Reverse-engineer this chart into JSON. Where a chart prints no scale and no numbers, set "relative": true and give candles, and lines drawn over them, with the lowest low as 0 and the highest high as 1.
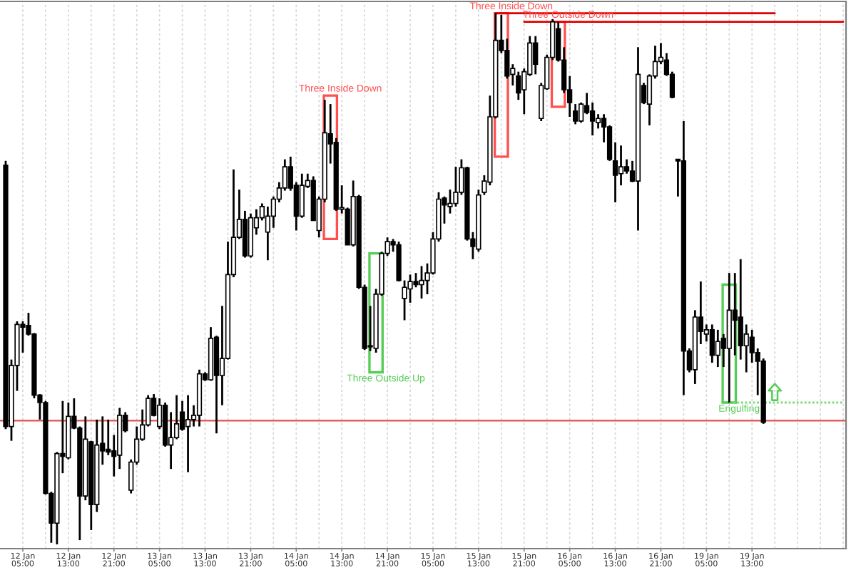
{
  "chart_data": {
    "type": "candlestick",
    "relative": true,
    "grid": "x",
    "categories": [
      null,
      null,
      null,
      "12 Jan 05:00",
      null,
      null,
      null,
      null,
      null,
      null,
      null,
      "12 Jan 13:00",
      null,
      null,
      null,
      null,
      null,
      null,
      null,
      "12 Jan 21:00",
      null,
      null,
      null,
      null,
      null,
      null,
      null,
      "13 Jan 05:00",
      null,
      null,
      null,
      null,
      null,
      null,
      null,
      "13 Jan 13:00",
      null,
      null,
      null,
      null,
      null,
      null,
      null,
      "13 Jan 21:00",
      null,
      null,
      null,
      null,
      null,
      null,
      null,
      "14 Jan 05:00",
      null,
      null,
      null,
      null,
      null,
      null,
      null,
      "14 Jan 13:00",
      null,
      null,
      null,
      null,
      null,
      null,
      null,
      "14 Jan 21:00",
      null,
      null,
      null,
      null,
      null,
      null,
      null,
      "15 Jan 05:00",
      null,
      null,
      null,
      null,
      null,
      null,
      null,
      "15 Jan 13:00",
      null,
      null,
      null,
      null,
      null,
      null,
      null,
      "15 Jan 21:00",
      null,
      null,
      null,
      null,
      null,
      null,
      null,
      "16 Jan 05:00",
      null,
      null,
      null,
      null,
      null,
      null,
      null,
      "16 Jan 13:00",
      null,
      null,
      null,
      null,
      null,
      null,
      null,
      "16 Jan 21:00",
      null,
      null,
      null,
      null,
      null,
      null,
      null,
      "19 Jan 05:00",
      null,
      null,
      null,
      null,
      null,
      null,
      null,
      "19 Jan 13:00",
      null,
      null,
      null,
      null,
      null,
      null,
      null,
      null,
      null,
      null,
      null,
      null,
      null,
      null,
      null,
      null
    ],
    "ref_lines": [
      {
        "axis": "y",
        "value": 0.233,
        "color": "#e05050"
      }
    ],
    "annotations": [
      "Three Inside Down",
      "Three Outside Up",
      "Three Inside Down",
      "Three Outside Down",
      "Engulfing"
    ],
    "ohlc": [
      [
        0.714,
        0.722,
        0.217,
        0.222
      ],
      [
        0.222,
        0.348,
        0.195,
        0.337
      ],
      [
        0.337,
        0.42,
        0.289,
        0.414
      ],
      [
        0.414,
        0.42,
        0.361,
        0.409
      ],
      [
        0.412,
        0.436,
        0.393,
        0.396
      ],
      [
        0.396,
        0.398,
        0.275,
        0.281
      ],
      [
        0.281,
        0.283,
        0.235,
        0.267
      ],
      [
        0.267,
        0.27,
        0.094,
        0.096
      ],
      [
        0.096,
        0.099,
        0.003,
        0.04
      ],
      [
        0.04,
        0.174,
        0.0,
        0.171
      ],
      [
        0.171,
        0.27,
        0.134,
        0.166
      ],
      [
        0.163,
        0.267,
        0.16,
        0.241
      ],
      [
        0.241,
        0.275,
        0.217,
        0.219
      ],
      [
        0.219,
        0.222,
        0.008,
        0.091
      ],
      [
        0.091,
        0.241,
        0.083,
        0.198
      ],
      [
        0.193,
        0.195,
        0.027,
        0.075
      ],
      [
        0.075,
        0.235,
        0.061,
        0.187
      ],
      [
        0.19,
        0.241,
        0.15,
        0.176
      ],
      [
        0.179,
        0.235,
        0.168,
        0.174
      ],
      [
        0.176,
        0.206,
        0.128,
        0.166
      ],
      [
        0.168,
        0.257,
        0.142,
        0.243
      ],
      [
        0.243,
        0.249,
        0.211,
        0.214
      ],
      [
        0.102,
        0.16,
        0.096,
        0.155
      ],
      [
        0.155,
        0.222,
        0.15,
        0.198
      ],
      [
        0.198,
        0.254,
        0.195,
        0.225
      ],
      [
        0.225,
        0.281,
        0.222,
        0.275
      ],
      [
        0.275,
        0.283,
        0.241,
        0.243
      ],
      [
        0.222,
        0.275,
        0.217,
        0.262
      ],
      [
        0.262,
        0.267,
        0.184,
        0.187
      ],
      [
        0.187,
        0.249,
        0.142,
        0.201
      ],
      [
        0.201,
        0.281,
        0.198,
        0.227
      ],
      [
        0.249,
        0.27,
        0.214,
        0.217
      ],
      [
        0.222,
        0.281,
        0.136,
        0.235
      ],
      [
        0.235,
        0.262,
        0.222,
        0.243
      ],
      [
        0.243,
        0.329,
        0.222,
        0.321
      ],
      [
        0.321,
        0.324,
        0.308,
        0.31
      ],
      [
        0.31,
        0.409,
        0.308,
        0.388
      ],
      [
        0.39,
        0.393,
        0.209,
        0.318
      ],
      [
        0.318,
        0.449,
        0.262,
        0.35
      ],
      [
        0.35,
        0.57,
        0.348,
        0.508
      ],
      [
        0.508,
        0.706,
        0.503,
        0.578
      ],
      [
        0.578,
        0.668,
        0.575,
        0.612
      ],
      [
        0.612,
        0.628,
        0.54,
        0.543
      ],
      [
        0.543,
        0.623,
        0.54,
        0.615
      ],
      [
        0.596,
        0.631,
        0.583,
        0.615
      ],
      [
        0.615,
        0.642,
        0.61,
        0.636
      ],
      [
        0.588,
        0.636,
        0.535,
        0.618
      ],
      [
        0.618,
        0.655,
        0.596,
        0.65
      ],
      [
        0.65,
        0.682,
        0.644,
        0.671
      ],
      [
        0.671,
        0.725,
        0.666,
        0.711
      ],
      [
        0.711,
        0.73,
        0.666,
        0.671
      ],
      [
        0.676,
        0.682,
        0.591,
        0.618
      ],
      [
        0.618,
        0.698,
        0.615,
        0.676
      ],
      [
        0.674,
        0.698,
        0.671,
        0.685
      ],
      [
        0.685,
        0.693,
        0.61,
        0.61
      ],
      [
        0.591,
        0.655,
        0.578,
        0.65
      ],
      [
        0.65,
        0.837,
        0.644,
        0.775
      ],
      [
        0.773,
        0.829,
        0.717,
        0.754
      ],
      [
        0.757,
        0.765,
        0.628,
        0.631
      ],
      [
        0.631,
        0.676,
        0.623,
        0.634
      ],
      [
        0.631,
        0.634,
        0.564,
        0.564
      ],
      [
        0.564,
        0.685,
        0.561,
        0.655
      ],
      [
        0.655,
        0.658,
        0.481,
        0.484
      ],
      [
        0.484,
        0.489,
        0.366,
        0.369
      ],
      [
        0.372,
        0.449,
        0.364,
        0.374
      ],
      [
        0.369,
        0.481,
        0.361,
        0.471
      ],
      [
        0.471,
        0.551,
        0.468,
        0.548
      ],
      [
        0.548,
        0.578,
        0.543,
        0.57
      ],
      [
        0.57,
        0.575,
        0.551,
        0.564
      ],
      [
        0.564,
        0.57,
        0.495,
        0.497
      ],
      [
        0.463,
        0.497,
        0.422,
        0.484
      ],
      [
        0.481,
        0.508,
        0.455,
        0.495
      ],
      [
        0.495,
        0.511,
        0.484,
        0.489
      ],
      [
        0.489,
        0.524,
        0.463,
        0.497
      ],
      [
        0.497,
        0.529,
        0.471,
        0.511
      ],
      [
        0.511,
        0.588,
        0.508,
        0.575
      ],
      [
        0.575,
        0.663,
        0.57,
        0.65
      ],
      [
        0.652,
        0.655,
        0.604,
        0.639
      ],
      [
        0.636,
        0.668,
        0.623,
        0.642
      ],
      [
        0.642,
        0.711,
        0.636,
        0.663
      ],
      [
        0.663,
        0.725,
        0.658,
        0.709
      ],
      [
        0.709,
        0.711,
        0.572,
        0.575
      ],
      [
        0.575,
        0.588,
        0.537,
        0.561
      ],
      [
        0.556,
        0.668,
        0.551,
        0.658
      ],
      [
        0.663,
        0.695,
        0.658,
        0.684
      ],
      [
        0.682,
        0.845,
        0.676,
        0.805
      ],
      [
        0.805,
        1.0,
        0.802,
        0.949
      ],
      [
        0.949,
        0.997,
        0.925,
        0.93
      ],
      [
        0.93,
        0.952,
        0.877,
        0.882
      ],
      [
        0.885,
        0.904,
        0.864,
        0.896
      ],
      [
        0.882,
        0.89,
        0.837,
        0.85
      ],
      [
        0.856,
        0.896,
        0.81,
        0.89
      ],
      [
        0.885,
        0.957,
        0.882,
        0.944
      ],
      [
        0.944,
        0.957,
        0.885,
        0.904
      ],
      [
        0.802,
        0.869,
        0.797,
        0.864
      ],
      [
        0.858,
        0.922,
        0.856,
        0.917
      ],
      [
        0.917,
        0.989,
        0.912,
        0.984
      ],
      [
        0.971,
        0.984,
        0.909,
        0.912
      ],
      [
        0.912,
        0.936,
        0.85,
        0.856
      ],
      [
        0.856,
        0.882,
        0.805,
        0.832
      ],
      [
        0.816,
        0.829,
        0.791,
        0.797
      ],
      [
        0.797,
        0.832,
        0.794,
        0.829
      ],
      [
        0.826,
        0.85,
        0.81,
        0.813
      ],
      [
        0.816,
        0.832,
        0.77,
        0.797
      ],
      [
        0.794,
        0.81,
        0.783,
        0.802
      ],
      [
        0.802,
        0.81,
        0.757,
        0.786
      ],
      [
        0.786,
        0.789,
        0.722,
        0.725
      ],
      [
        0.722,
        0.757,
        0.644,
        0.695
      ],
      [
        0.698,
        0.751,
        0.676,
        0.711
      ],
      [
        0.711,
        0.725,
        0.698,
        0.703
      ],
      [
        0.703,
        0.722,
        0.682,
        0.684
      ],
      [
        0.684,
        0.936,
        0.591,
        0.885
      ],
      [
        0.864,
        0.869,
        0.829,
        0.832
      ],
      [
        0.829,
        0.885,
        0.789,
        0.882
      ],
      [
        0.882,
        0.939,
        0.877,
        0.909
      ],
      [
        0.909,
        0.944,
        0.904,
        0.917
      ],
      [
        0.912,
        0.925,
        0.882,
        0.885
      ],
      [
        0.885,
        0.89,
        0.84,
        0.842
      ],
      [
        0.725,
        0.725,
        0.655,
        0.722
      ],
      [
        0.722,
        0.797,
        0.281,
        0.364
      ],
      [
        0.364,
        0.369,
        0.324,
        0.329
      ],
      [
        0.329,
        0.441,
        0.302,
        0.428
      ],
      [
        0.428,
        0.495,
        0.377,
        0.401
      ],
      [
        0.396,
        0.414,
        0.382,
        0.404
      ],
      [
        0.404,
        0.414,
        0.342,
        0.356
      ],
      [
        0.356,
        0.404,
        0.334,
        0.382
      ],
      [
        0.388,
        0.396,
        0.334,
        0.369
      ],
      [
        0.369,
        0.511,
        0.267,
        0.441
      ],
      [
        0.441,
        0.511,
        0.356,
        0.422
      ],
      [
        0.428,
        0.537,
        0.348,
        0.374
      ],
      [
        0.374,
        0.414,
        0.324,
        0.396
      ],
      [
        0.39,
        0.404,
        0.342,
        0.361
      ],
      [
        0.361,
        0.369,
        0.281,
        0.345
      ],
      [
        0.345,
        0.35,
        0.227,
        0.23
      ],
      null,
      null,
      null,
      null,
      null,
      null,
      null,
      null,
      null,
      null,
      null,
      null,
      null,
      null
    ],
    "series": [
      {
        "type": "candlestick",
        "color": "#ff5050",
        "ohlc": [
          null,
          null,
          null,
          null,
          null,
          null,
          null,
          null,
          null,
          null,
          null,
          null,
          null,
          null,
          null,
          null,
          null,
          null,
          null,
          null,
          null,
          null,
          null,
          null,
          null,
          null,
          null,
          null,
          null,
          null,
          null,
          null,
          null,
          null,
          null,
          null,
          null,
          null,
          null,
          null,
          null,
          null,
          null,
          null,
          null,
          null,
          null,
          null,
          null,
          null,
          null,
          null,
          null,
          null,
          null,
          null,
          null,
          [
            0.845,
            0.845,
            0.575,
            0.575
          ],
          null,
          null,
          null,
          null,
          null,
          null,
          null,
          null,
          null,
          null,
          null,
          null,
          null,
          null,
          null,
          null,
          null,
          null,
          null,
          null,
          null,
          null,
          null,
          null,
          null,
          null,
          null,
          null,
          null,
          [
            1.0,
            1.0,
            0.73,
            0.73
          ],
          null,
          null,
          null,
          null,
          null,
          null,
          null,
          null,
          null,
          [
            0.984,
            0.984,
            0.824,
            0.824
          ],
          null,
          null,
          null,
          null,
          null,
          null,
          null,
          null,
          null,
          null,
          null,
          null,
          null,
          null,
          null,
          null,
          null,
          null,
          null,
          null,
          null,
          null,
          null,
          null,
          null,
          null,
          null,
          null,
          null,
          null,
          null,
          null,
          null,
          null,
          null,
          null,
          null,
          null,
          null,
          null,
          null,
          null,
          null,
          null,
          null,
          null,
          null,
          null,
          null,
          null
        ]
      },
      {
        "type": "candlestick",
        "color": "#55cc55",
        "ohlc": [
          null,
          null,
          null,
          null,
          null,
          null,
          null,
          null,
          null,
          null,
          null,
          null,
          null,
          null,
          null,
          null,
          null,
          null,
          null,
          null,
          null,
          null,
          null,
          null,
          null,
          null,
          null,
          null,
          null,
          null,
          null,
          null,
          null,
          null,
          null,
          null,
          null,
          null,
          null,
          null,
          null,
          null,
          null,
          null,
          null,
          null,
          null,
          null,
          null,
          null,
          null,
          null,
          null,
          null,
          null,
          null,
          null,
          null,
          null,
          null,
          null,
          null,
          null,
          null,
          null,
          [
            0.324,
            0.548,
            0.324,
            0.548
          ],
          null,
          null,
          null,
          null,
          null,
          null,
          null,
          null,
          null,
          null,
          null,
          null,
          null,
          null,
          null,
          null,
          null,
          null,
          null,
          null,
          null,
          null,
          null,
          null,
          null,
          null,
          null,
          null,
          null,
          null,
          null,
          null,
          null,
          null,
          null,
          null,
          null,
          null,
          null,
          null,
          null,
          null,
          null,
          null,
          null,
          null,
          null,
          null,
          null,
          null,
          null,
          null,
          null,
          null,
          null,
          null,
          null,
          null,
          null,
          null,
          null,
          [
            0.267,
            0.489,
            0.267,
            0.489
          ],
          null,
          null,
          null,
          null,
          null,
          null,
          null,
          null,
          null,
          null,
          null,
          null,
          null,
          null,
          null,
          null,
          null,
          null,
          null,
          null
        ]
      },
      {
        "type": "line",
        "color": "#e00000",
        "values": [
          null,
          null,
          null,
          null,
          null,
          null,
          null,
          null,
          null,
          null,
          null,
          null,
          null,
          null,
          null,
          null,
          null,
          null,
          null,
          null,
          null,
          null,
          null,
          null,
          null,
          null,
          null,
          null,
          null,
          null,
          null,
          null,
          null,
          null,
          null,
          null,
          null,
          null,
          null,
          null,
          null,
          null,
          null,
          null,
          null,
          null,
          null,
          null,
          null,
          null,
          null,
          null,
          null,
          null,
          null,
          null,
          null,
          null,
          null,
          null,
          null,
          null,
          null,
          null,
          null,
          null,
          null,
          null,
          null,
          null,
          null,
          null,
          null,
          null,
          null,
          null,
          null,
          null,
          null,
          null,
          null,
          null,
          null,
          null,
          null,
          null,
          1.0,
          1.0,
          1.0,
          1.0,
          1.0,
          1.0,
          1.0,
          1.0,
          1.0,
          1.0,
          1.0,
          1.0,
          1.0,
          1.0,
          1.0,
          1.0,
          1.0,
          1.0,
          1.0,
          1.0,
          1.0,
          1.0,
          1.0,
          1.0,
          1.0,
          1.0,
          1.0,
          1.0,
          1.0,
          1.0,
          1.0,
          1.0,
          1.0,
          1.0,
          1.0,
          1.0,
          1.0,
          1.0,
          1.0,
          1.0,
          1.0,
          1.0,
          1.0,
          1.0,
          1.0,
          1.0,
          1.0,
          1.0,
          1.0,
          1.0,
          null,
          null,
          null,
          null,
          null,
          null,
          null,
          null,
          null,
          null,
          null,
          null
        ]
      },
      {
        "type": "line",
        "color": "#e00000",
        "values": [
          null,
          null,
          null,
          null,
          null,
          null,
          null,
          null,
          null,
          null,
          null,
          null,
          null,
          null,
          null,
          null,
          null,
          null,
          null,
          null,
          null,
          null,
          null,
          null,
          null,
          null,
          null,
          null,
          null,
          null,
          null,
          null,
          null,
          null,
          null,
          null,
          null,
          null,
          null,
          null,
          null,
          null,
          null,
          null,
          null,
          null,
          null,
          null,
          null,
          null,
          null,
          null,
          null,
          null,
          null,
          null,
          null,
          null,
          null,
          null,
          null,
          null,
          null,
          null,
          null,
          null,
          null,
          null,
          null,
          null,
          null,
          null,
          null,
          null,
          null,
          null,
          null,
          null,
          null,
          null,
          null,
          null,
          null,
          null,
          null,
          null,
          null,
          null,
          null,
          null,
          null,
          0.984,
          0.984,
          0.984,
          0.984,
          0.984,
          0.984,
          0.984,
          0.984,
          0.984,
          0.984,
          0.984,
          0.984,
          0.984,
          0.984,
          0.984,
          0.984,
          0.984,
          0.984,
          0.984,
          0.984,
          0.984,
          0.984,
          0.984,
          0.984,
          0.984,
          0.984,
          0.984,
          0.984,
          0.984,
          0.984,
          0.984,
          0.984,
          0.984,
          0.984,
          0.984,
          0.984,
          0.984,
          0.984,
          0.984,
          0.984,
          0.984,
          0.984,
          0.984,
          0.984,
          0.984,
          0.984,
          0.984,
          0.984,
          0.984,
          0.984,
          0.984,
          0.984,
          0.984,
          0.984,
          0.984,
          0.984,
          0.984
        ]
      },
      {
        "type": "line",
        "color": "#77dd77",
        "line_style": "dotted",
        "values": [
          null,
          null,
          null,
          null,
          null,
          null,
          null,
          null,
          null,
          null,
          null,
          null,
          null,
          null,
          null,
          null,
          null,
          null,
          null,
          null,
          null,
          null,
          null,
          null,
          null,
          null,
          null,
          null,
          null,
          null,
          null,
          null,
          null,
          null,
          null,
          null,
          null,
          null,
          null,
          null,
          null,
          null,
          null,
          null,
          null,
          null,
          null,
          null,
          null,
          null,
          null,
          null,
          null,
          null,
          null,
          null,
          null,
          null,
          null,
          null,
          null,
          null,
          null,
          null,
          null,
          null,
          null,
          null,
          null,
          null,
          null,
          null,
          null,
          null,
          null,
          null,
          null,
          null,
          null,
          null,
          null,
          null,
          null,
          null,
          null,
          null,
          null,
          null,
          null,
          null,
          null,
          null,
          null,
          null,
          null,
          null,
          null,
          null,
          null,
          null,
          null,
          null,
          null,
          null,
          null,
          null,
          null,
          null,
          null,
          null,
          null,
          null,
          null,
          null,
          null,
          null,
          null,
          null,
          null,
          null,
          null,
          null,
          null,
          null,
          null,
          null,
          null,
          0.267,
          0.267,
          0.267,
          0.267,
          0.267,
          0.267,
          0.267,
          0.267,
          0.267,
          0.267,
          0.267,
          0.267,
          0.267,
          0.267,
          0.267,
          0.267,
          0.267,
          0.267,
          0.267,
          0.267,
          0.267
        ]
      },
      {
        "type": "scatter",
        "color": "#55cc55",
        "marker": "triangle",
        "values": [
          null,
          null,
          null,
          null,
          null,
          null,
          null,
          null,
          null,
          null,
          null,
          null,
          null,
          null,
          null,
          null,
          null,
          null,
          null,
          null,
          null,
          null,
          null,
          null,
          null,
          null,
          null,
          null,
          null,
          null,
          null,
          null,
          null,
          null,
          null,
          null,
          null,
          null,
          null,
          null,
          null,
          null,
          null,
          null,
          null,
          null,
          null,
          null,
          null,
          null,
          null,
          null,
          null,
          null,
          null,
          null,
          null,
          null,
          null,
          null,
          null,
          null,
          null,
          null,
          null,
          null,
          null,
          null,
          null,
          null,
          null,
          null,
          null,
          null,
          null,
          null,
          null,
          null,
          null,
          null,
          null,
          null,
          null,
          null,
          null,
          null,
          null,
          null,
          null,
          null,
          null,
          null,
          null,
          null,
          null,
          null,
          null,
          null,
          null,
          null,
          null,
          null,
          null,
          null,
          null,
          null,
          null,
          null,
          null,
          null,
          null,
          null,
          null,
          null,
          null,
          null,
          null,
          null,
          null,
          null,
          null,
          null,
          null,
          null,
          null,
          null,
          null,
          null,
          null,
          null,
          null,
          null,
          null,
          null,
          null,
          0.287,
          null,
          null,
          null,
          null,
          null,
          null,
          null,
          null,
          null,
          null,
          null,
          null
        ]
      }
    ]
  }
}
